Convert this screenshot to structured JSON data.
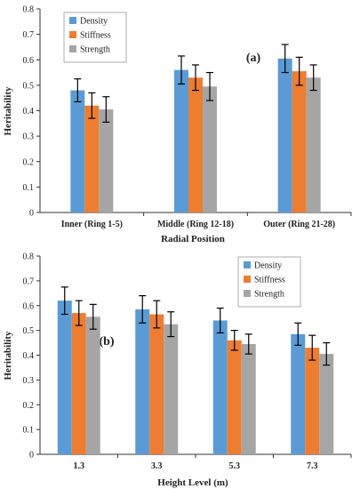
{
  "chart_data": [
    {
      "type": "bar",
      "panel_label": "(a)",
      "xlabel": "Radial Position",
      "ylabel": "Heritability",
      "ylim": [
        0,
        0.8
      ],
      "yticks": [
        "0",
        "0.1",
        "0.2",
        "0.3",
        "0.4",
        "0.5",
        "0.6",
        "0.7",
        "0.8"
      ],
      "categories": [
        "Inner (Ring 1-5)",
        "Middle (Ring 12-18)",
        "Outer (Ring 21-28)"
      ],
      "legend_position": "top-left",
      "series": [
        {
          "name": "Density",
          "color": "#5b9bd5",
          "values": [
            0.48,
            0.56,
            0.605
          ],
          "errors": [
            0.045,
            0.055,
            0.055
          ]
        },
        {
          "name": "Stiffness",
          "color": "#ed7d31",
          "values": [
            0.42,
            0.53,
            0.555
          ],
          "errors": [
            0.05,
            0.05,
            0.055
          ]
        },
        {
          "name": "Strength",
          "color": "#a5a5a5",
          "values": [
            0.405,
            0.495,
            0.53
          ],
          "errors": [
            0.05,
            0.055,
            0.05
          ]
        }
      ]
    },
    {
      "type": "bar",
      "panel_label": "(b)",
      "xlabel": "Height Level (m)",
      "ylabel": "Heritability",
      "ylim": [
        0,
        0.8
      ],
      "yticks": [
        "0",
        "0.1",
        "0.2",
        "0.3",
        "0.4",
        "0.5",
        "0.6",
        "0.7",
        "0.8"
      ],
      "categories": [
        "1.3",
        "3.3",
        "5.3",
        "7.3"
      ],
      "legend_position": "top-right",
      "series": [
        {
          "name": "Density",
          "color": "#5b9bd5",
          "values": [
            0.62,
            0.585,
            0.54,
            0.485
          ],
          "errors": [
            0.055,
            0.055,
            0.05,
            0.045
          ]
        },
        {
          "name": "Stiffness",
          "color": "#ed7d31",
          "values": [
            0.57,
            0.565,
            0.46,
            0.43
          ],
          "errors": [
            0.05,
            0.055,
            0.04,
            0.05
          ]
        },
        {
          "name": "Strength",
          "color": "#a5a5a5",
          "values": [
            0.555,
            0.525,
            0.445,
            0.405
          ],
          "errors": [
            0.05,
            0.05,
            0.04,
            0.045
          ]
        }
      ]
    }
  ]
}
